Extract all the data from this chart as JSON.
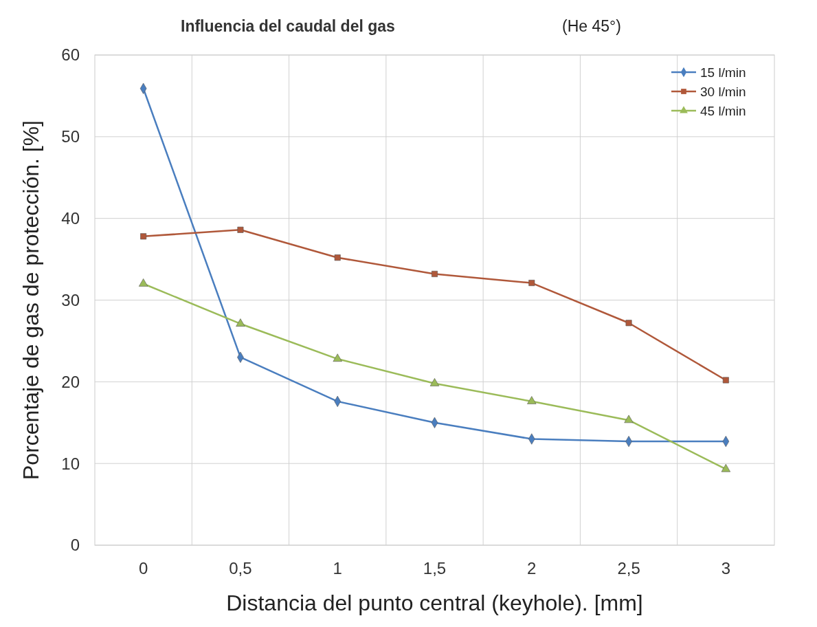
{
  "chart_data": {
    "type": "line",
    "title": "Influencia del caudal del gas",
    "subtitle": "(He 45°)",
    "xlabel": "Distancia del punto central (keyhole).       [mm]",
    "ylabel": "Porcentaje de gas de protección. [%]",
    "categories": [
      "0",
      "0,5",
      "1",
      "1,5",
      "2",
      "2,5",
      "3"
    ],
    "ylim": [
      0,
      60
    ],
    "yticks": [
      0,
      10,
      20,
      30,
      40,
      50,
      60
    ],
    "grid": true,
    "legend": "top right",
    "series": [
      {
        "name": "15 l/min",
        "color": "#4a7ebf",
        "marker": "diamond",
        "values": [
          55.9,
          23.0,
          17.6,
          15.0,
          13.0,
          12.7,
          12.7
        ]
      },
      {
        "name": "30 l/min",
        "color": "#b0583a",
        "marker": "square",
        "values": [
          37.8,
          38.6,
          35.2,
          33.2,
          32.1,
          27.2,
          20.2
        ]
      },
      {
        "name": "45 l/min",
        "color": "#9bbb59",
        "marker": "triangle",
        "values": [
          32.0,
          27.1,
          22.8,
          19.8,
          17.6,
          15.3,
          9.3
        ]
      }
    ]
  }
}
